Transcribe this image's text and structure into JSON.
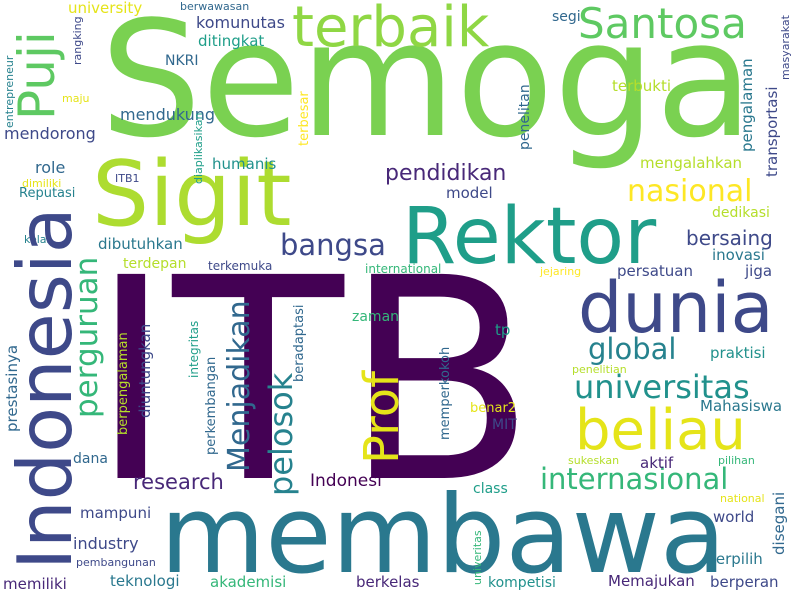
{
  "colors": {
    "background": "#ffffff",
    "palette": [
      "#440154",
      "#482878",
      "#3e4989",
      "#31688e",
      "#26828e",
      "#1f9e89",
      "#35b779",
      "#6ece58",
      "#b5de2b",
      "#fde725"
    ]
  },
  "words": [
    "ITB",
    "Semoga",
    "membawa",
    "Rektor",
    "Sigit",
    "Indonesia",
    "dunia",
    "beliau",
    "terbaik",
    "Santosa",
    "Puji",
    "Prof",
    "internasional",
    "universitas",
    "pelosok",
    "Menjadikan",
    "perguruan",
    "nasional",
    "global",
    "bangsa",
    "pendidikan",
    "research",
    "bersaing",
    "Indonesi",
    "mendukung",
    "mendorong",
    "role",
    "model",
    "komunutas",
    "ditingkat",
    "NKRI",
    "university",
    "segi",
    "humanis",
    "industry",
    "dana",
    "mampuni",
    "memiliki",
    "teknologi",
    "akademisi",
    "berkelas",
    "kompetisi",
    "Memajukan",
    "berperan",
    "terpilih",
    "disegani",
    "world",
    "class",
    "aktif",
    "MIT",
    "tp",
    "zaman",
    "persatuan",
    "inovasi",
    "jiga",
    "praktisi",
    "Mahasiswa",
    "mengalahkan",
    "dedikasi",
    "terbukti",
    "terbesar",
    "penelitan",
    "pengalaman",
    "transportasi",
    "masyarakat",
    "rangking",
    "entrepreneur",
    "maju",
    "Reputasi",
    "dimiliki",
    "kelas",
    "ITB1",
    "diaplikasikan",
    "berwawasan",
    "prestasinya",
    "berpengalaman",
    "diuntungkan",
    "perkembangan",
    "integritas",
    "beradaptasi",
    "memperkokoh",
    "benar2",
    "terdepan",
    "dibutuhkan",
    "terkemuka",
    "international",
    "jejaring",
    "penelitian",
    "sukeskan",
    "pilihan",
    "national",
    "univeritas",
    "pembangunan"
  ]
}
